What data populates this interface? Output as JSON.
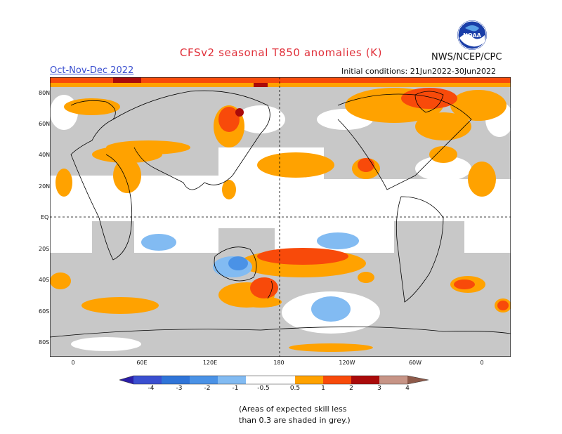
{
  "header": {
    "title": "CFSv2 seasonal T850 anomalies (K)",
    "season": "Oct-Nov-Dec 2022",
    "org": "NWS/NCEP/CPC",
    "initial_conditions": "Initial conditions: 21Jun2022-30Jun2022",
    "logo_text": "NOAA"
  },
  "axes": {
    "lat_labels": [
      "80N",
      "60N",
      "40N",
      "20N",
      "EQ",
      "20S",
      "40S",
      "60S",
      "80S"
    ],
    "lon_labels": [
      "0",
      "60E",
      "120E",
      "180",
      "120W",
      "60W",
      "0"
    ]
  },
  "legend": {
    "labels": [
      "-4",
      "-3",
      "-2",
      "-1",
      "-0.5",
      "0.5",
      "1",
      "2",
      "3",
      "4"
    ],
    "colors": {
      "lt_-4": "#2b1ea8",
      "-4_-3": "#3a4fd0",
      "-3_-2": "#2f74d8",
      "-2_-1": "#4a92e6",
      "-1_-0.5": "#82bbf2",
      "neutral": "#ffffff",
      "0.5_1": "#ffa200",
      "1_2": "#f84a0a",
      "2_3": "#aa0a0a",
      "3_4": "#c79486",
      "gt_4": "#8e5a4a"
    }
  },
  "map": {
    "grey_shade": "#c8c8c8",
    "dashed_lines": "equator and 180 meridian"
  },
  "footnote": {
    "line1": "(Areas of expected skill less",
    "line2": "than 0.3 are shaded in grey.)"
  }
}
